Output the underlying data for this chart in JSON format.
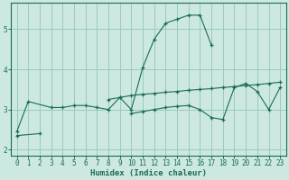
{
  "xlabel": "Humidex (Indice chaleur)",
  "bg_color": "#cce8e0",
  "grid_color": "#99ccbb",
  "line_color": "#1a6b58",
  "xlim": [
    -0.5,
    23.5
  ],
  "ylim": [
    1.85,
    5.65
  ],
  "xticks": [
    0,
    1,
    2,
    3,
    4,
    5,
    6,
    7,
    8,
    9,
    10,
    11,
    12,
    13,
    14,
    15,
    16,
    17,
    18,
    19,
    20,
    21,
    22,
    23
  ],
  "yticks": [
    2,
    3,
    4,
    5
  ],
  "curve1_x": [
    0,
    1,
    3,
    4,
    5,
    6,
    7,
    8,
    9,
    10,
    11,
    12,
    13,
    14,
    15,
    16,
    17
  ],
  "curve1_y": [
    2.45,
    3.2,
    3.05,
    3.05,
    3.1,
    3.1,
    3.05,
    3.0,
    3.3,
    3.0,
    4.05,
    4.75,
    5.15,
    5.25,
    5.35,
    5.35,
    4.6
  ],
  "curve2_x": [
    8,
    9,
    10,
    11,
    12,
    13,
    14,
    15,
    16,
    17,
    18,
    19,
    20,
    21,
    22,
    23
  ],
  "curve2_y": [
    3.25,
    3.3,
    3.35,
    3.38,
    3.4,
    3.43,
    3.45,
    3.48,
    3.5,
    3.52,
    3.55,
    3.57,
    3.6,
    3.62,
    3.65,
    3.68
  ],
  "curve3_x": [
    0,
    2,
    10,
    11,
    12,
    13,
    14,
    15,
    16,
    17,
    18,
    19,
    20,
    21,
    22,
    23
  ],
  "curve3_y": [
    2.35,
    2.4,
    2.9,
    2.95,
    3.0,
    3.05,
    3.08,
    3.1,
    3.0,
    2.8,
    2.75,
    3.55,
    3.65,
    3.45,
    3.0,
    3.55
  ]
}
